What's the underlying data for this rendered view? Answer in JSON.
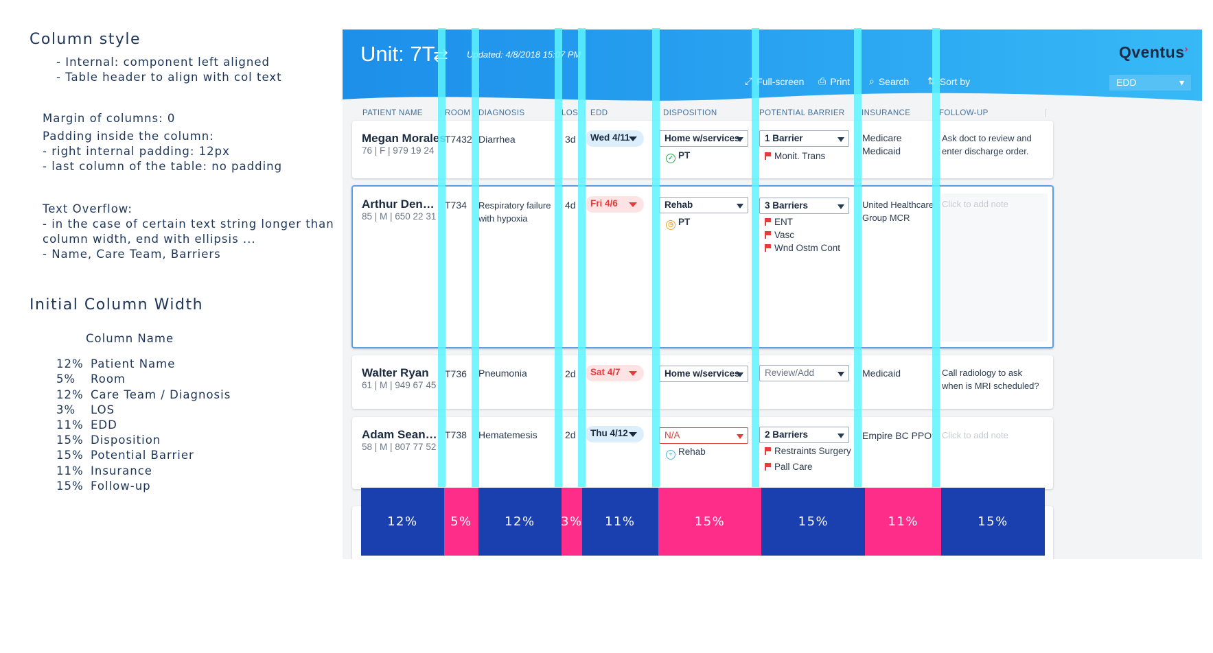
{
  "notes": {
    "column_style_title": "Column style",
    "column_style_lines": [
      "- Internal: component left aligned",
      "- Table header to align with col text"
    ],
    "margin_line": "Margin of columns: 0",
    "padding_title": "Padding inside the column:",
    "padding_lines": [
      "- right internal padding: 12px",
      "- last column of the table: no padding"
    ],
    "overflow_title": "Text Overflow:",
    "overflow_lines": [
      "- in the case of certain text string longer than",
      "column width, end with ellipsis ...",
      "- Name, Care Team, Barriers"
    ],
    "initial_width_title": "Initial Column Width",
    "column_name_header": "Column Name",
    "widths": [
      {
        "pct": "12%",
        "name": "Patient Name"
      },
      {
        "pct": "5%",
        "name": "Room"
      },
      {
        "pct": "12%",
        "name": "Care Team / Diagnosis"
      },
      {
        "pct": "3%",
        "name": "LOS"
      },
      {
        "pct": "11%",
        "name": "EDD"
      },
      {
        "pct": "15%",
        "name": "Disposition"
      },
      {
        "pct": "15%",
        "name": "Potential Barrier"
      },
      {
        "pct": "11%",
        "name": "Insurance"
      },
      {
        "pct": "15%",
        "name": "Follow-up"
      }
    ]
  },
  "app": {
    "unit_title": "Unit: 7T",
    "updated": "Updated: 4/8/2018 15:07 PM",
    "logo": "Qventus",
    "toolbar": {
      "fullscreen": "Full-screen",
      "print": "Print",
      "search": "Search",
      "sort_by": "Sort by",
      "sort_value": "EDD"
    },
    "columns": [
      "PATIENT NAME",
      "ROOM",
      "DIAGNOSIS",
      "LOS",
      "EDD",
      "DISPOSITION",
      "POTENTIAL BARRIER",
      "INSURANCE",
      "FOLLOW-UP"
    ],
    "patients": [
      {
        "name": "Megan Morales",
        "meta": "76  |  F  | 979 19 24",
        "room": "T7432",
        "diagnosis": "Diarrhea",
        "los": "3d",
        "edd": "Wed 4/11",
        "edd_status": "normal",
        "disposition": "Home w/services",
        "disposition_status": "PT",
        "barrier": "1 Barrier",
        "barriers": [
          "Monit. Trans"
        ],
        "insurance": "Medicare\nMedicaid",
        "followup": "Ask doct to review and enter discharge order."
      },
      {
        "name": "Arthur Denve...",
        "meta": "85  |  M  | 650 22 31",
        "room": "T734",
        "diagnosis": "Respiratory failure with hypoxia",
        "los": "4d",
        "edd": "Fri 4/6",
        "edd_status": "late",
        "disposition": "Rehab",
        "disposition_status": "PT",
        "barrier": "3 Barriers",
        "barriers": [
          "ENT",
          "Vasc",
          "Wnd Ostm Cont"
        ],
        "insurance": "United Healthcare Group MCR",
        "followup": "Click to add note"
      },
      {
        "name": "Walter Ryan",
        "meta": "61  |  M  | 949 67 45",
        "room": "T736",
        "diagnosis": "Pneumonia",
        "los": "2d",
        "edd": "Sat 4/7",
        "edd_status": "late",
        "disposition": "Home w/services",
        "barrier": "Review/Add",
        "barriers": [],
        "insurance": "Medicaid",
        "followup": "Call radiology to ask when is MRI scheduled?"
      },
      {
        "name": "Adam Sean P...",
        "meta": "58  |  M  | 807 77 52",
        "room": "T738",
        "diagnosis": "Hematemesis",
        "los": "2d",
        "edd": "Thu 4/12",
        "edd_status": "normal",
        "disposition": "N/A",
        "disposition_status": "Rehab",
        "barrier": "2 Barriers",
        "barriers": [
          "Restraints Surgery",
          "Pall Care"
        ],
        "insurance": "Empire BC PPO",
        "followup": "Click to add note"
      }
    ]
  },
  "width_bar": [
    {
      "label": "12%",
      "color": "#1a3fae",
      "width_fraction": 0.12
    },
    {
      "label": "5%",
      "color": "#ff2d8a",
      "width_fraction": 0.05
    },
    {
      "label": "12%",
      "color": "#1a3fae",
      "width_fraction": 0.12
    },
    {
      "label": "3%",
      "color": "#ff2d8a",
      "width_fraction": 0.03
    },
    {
      "label": "11%",
      "color": "#1a3fae",
      "width_fraction": 0.11
    },
    {
      "label": "15%",
      "color": "#ff2d8a",
      "width_fraction": 0.15
    },
    {
      "label": "15%",
      "color": "#1a3fae",
      "width_fraction": 0.15
    },
    {
      "label": "11%",
      "color": "#ff2d8a",
      "width_fraction": 0.11
    },
    {
      "label": "15%",
      "color": "#1a3fae",
      "width_fraction": 0.15
    }
  ],
  "colors": {
    "guide": "#5cf3ff",
    "header_blue": "#1d8fea",
    "late_red": "#e53b3b"
  }
}
